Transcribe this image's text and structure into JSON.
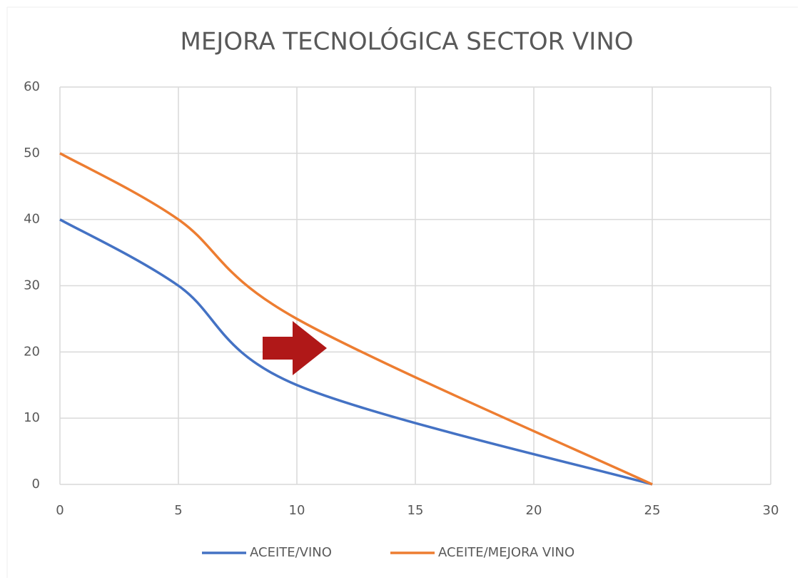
{
  "chart_data": {
    "type": "line",
    "smooth": true,
    "title": "MEJORA TECNOLÓGICA SECTOR VINO",
    "x": [
      0,
      5,
      10,
      25
    ],
    "series": [
      {
        "name": "ACEITE/VINO",
        "color": "#4472c4",
        "values": [
          40,
          30,
          15,
          0
        ]
      },
      {
        "name": "ACEITE/MEJORA VINO",
        "color": "#ed7d31",
        "values": [
          50,
          40,
          25,
          0
        ]
      }
    ],
    "xlim": [
      0,
      30
    ],
    "xticks": [
      0,
      5,
      10,
      15,
      20,
      25,
      30
    ],
    "ylim": [
      0,
      60
    ],
    "yticks": [
      0,
      10,
      20,
      30,
      40,
      50,
      60
    ],
    "grid": true,
    "legend": "bottom"
  }
}
